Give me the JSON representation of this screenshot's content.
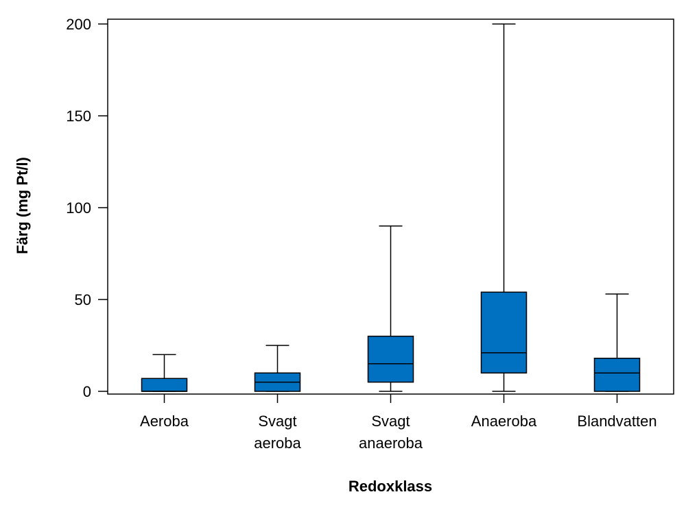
{
  "chart_data": {
    "type": "boxplot",
    "title": "",
    "xlabel": "Redoxklass",
    "ylabel": "Färg (mg Pt/l)",
    "ylim": [
      0,
      200
    ],
    "yticks": [
      0,
      50,
      100,
      150,
      200
    ],
    "grid": false,
    "legend": "none",
    "box_color": "#0070C0",
    "line_color": "#000000",
    "categories": [
      {
        "lines": [
          "Aeroba"
        ]
      },
      {
        "lines": [
          "Svagt",
          "aeroba"
        ]
      },
      {
        "lines": [
          "Svagt",
          "anaeroba"
        ]
      },
      {
        "lines": [
          "Anaeroba"
        ]
      },
      {
        "lines": [
          "Blandvatten"
        ]
      }
    ],
    "boxes": [
      {
        "min": 0,
        "q1": 0,
        "median": 0,
        "q3": 7,
        "max": 20
      },
      {
        "min": 0,
        "q1": 0,
        "median": 5,
        "q3": 10,
        "max": 25
      },
      {
        "min": 0,
        "q1": 5,
        "median": 15,
        "q3": 30,
        "max": 90
      },
      {
        "min": 0,
        "q1": 10,
        "median": 21,
        "q3": 54,
        "max": 200
      },
      {
        "min": 0,
        "q1": 0,
        "median": 10,
        "q3": 18,
        "max": 53
      }
    ]
  }
}
